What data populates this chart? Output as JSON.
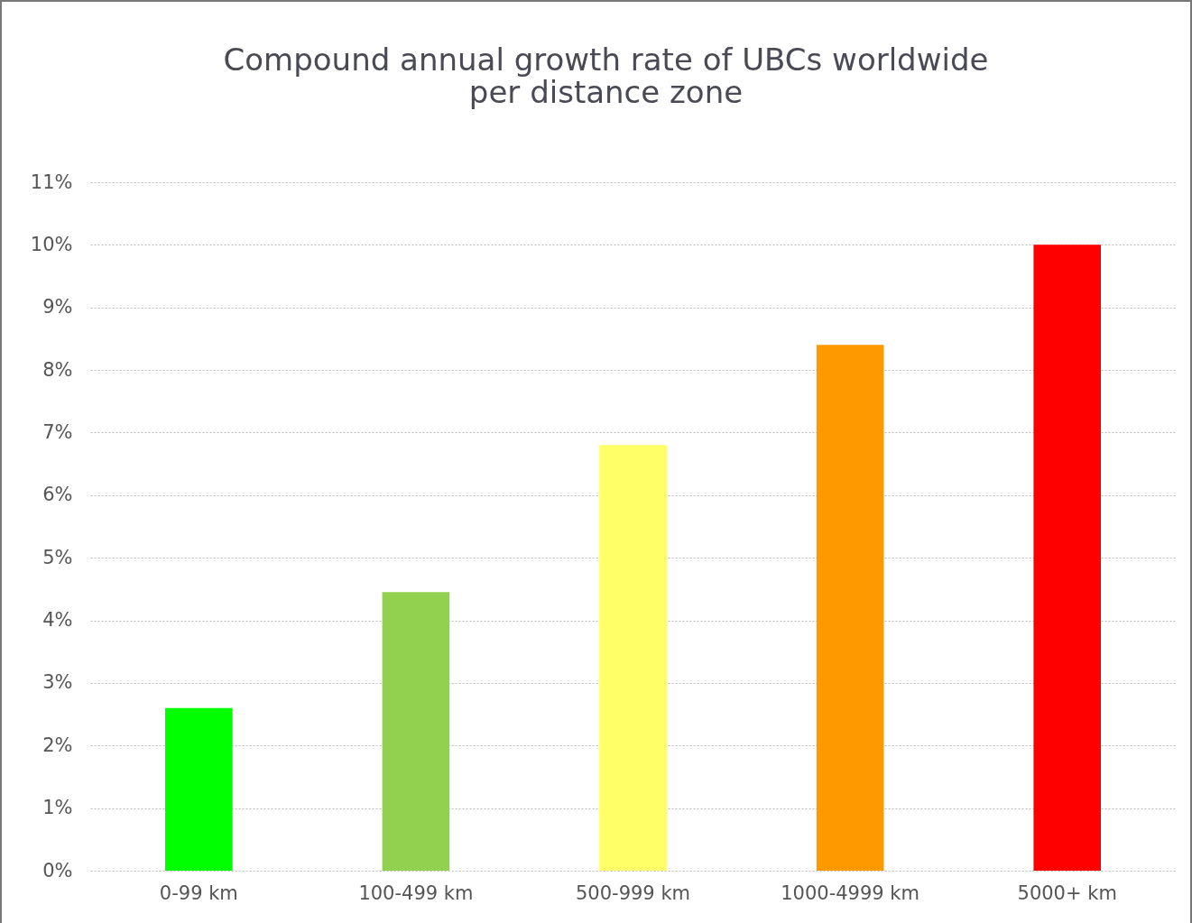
{
  "chart_data": {
    "type": "bar",
    "title": [
      "Compound annual growth rate of UBCs worldwide",
      "per distance zone"
    ],
    "categories": [
      "0-99 km",
      "100-499 km",
      "500-999 km",
      "1000-4999 km",
      "5000+ km"
    ],
    "values": [
      2.6,
      4.45,
      6.8,
      8.4,
      10.0
    ],
    "colors": [
      "#00ff00",
      "#92d050",
      "#ffff66",
      "#ff9900",
      "#ff0000"
    ],
    "ylim": [
      0,
      11
    ],
    "yticks": [
      {
        "value": 0,
        "label": "0%"
      },
      {
        "value": 1,
        "label": "1%"
      },
      {
        "value": 2,
        "label": "2%"
      },
      {
        "value": 3,
        "label": "3%"
      },
      {
        "value": 4,
        "label": "4%"
      },
      {
        "value": 5,
        "label": "5%"
      },
      {
        "value": 6,
        "label": "6%"
      },
      {
        "value": 7,
        "label": "7%"
      },
      {
        "value": 8,
        "label": "8%"
      },
      {
        "value": 9,
        "label": "9%"
      },
      {
        "value": 10,
        "label": "10%"
      },
      {
        "value": 11,
        "label": "11%"
      }
    ],
    "grid": "y",
    "legend": false
  }
}
